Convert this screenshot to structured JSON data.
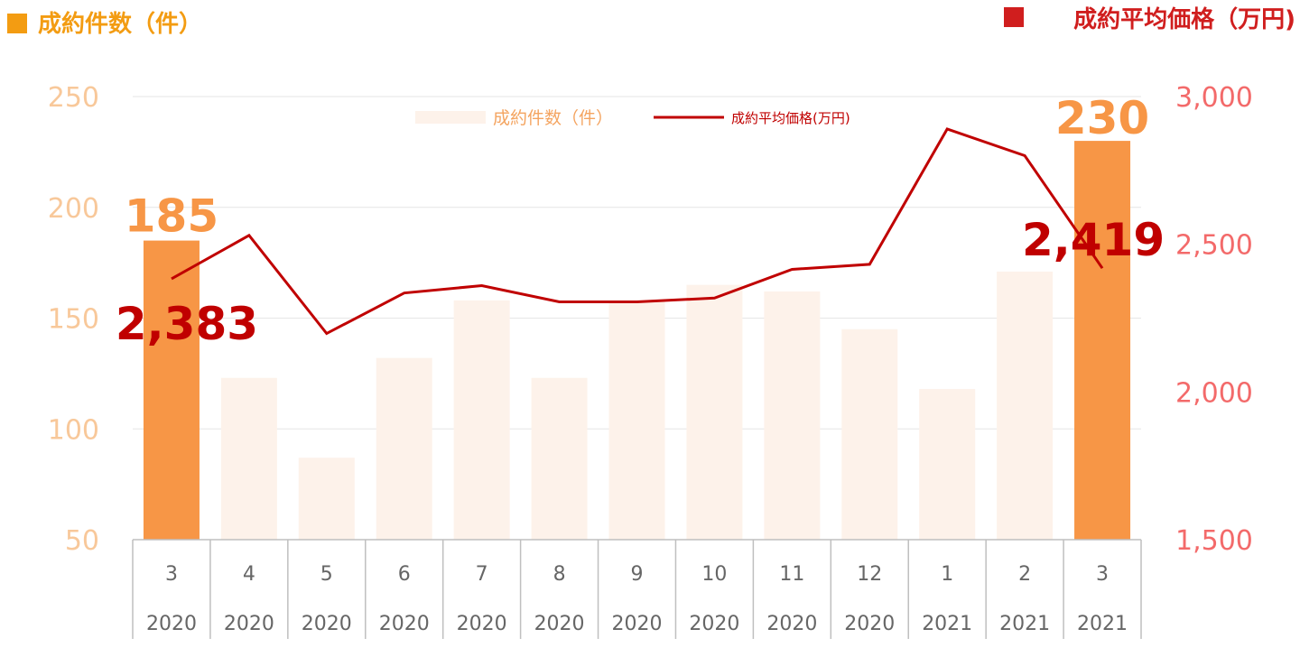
{
  "chart_data": {
    "type": "bar",
    "title_left": "成約件数（件）",
    "title_right": "成約平均価格（万円)",
    "categories": [
      "3",
      "4",
      "5",
      "6",
      "7",
      "8",
      "9",
      "10",
      "11",
      "12",
      "1",
      "2",
      "3"
    ],
    "years": [
      "2020",
      "2020",
      "2020",
      "2020",
      "2020",
      "2020",
      "2020",
      "2020",
      "2020",
      "2020",
      "2021",
      "2021",
      "2021"
    ],
    "series": [
      {
        "name": "成約件数（件）",
        "kind": "bar",
        "axis": "left",
        "values": [
          185,
          123,
          87,
          132,
          158,
          123,
          158,
          165,
          162,
          145,
          118,
          171,
          230
        ]
      },
      {
        "name": "成約平均価格(万円)",
        "kind": "line",
        "axis": "right",
        "values": [
          2383,
          2530,
          2198,
          2335,
          2360,
          2305,
          2305,
          2318,
          2415,
          2432,
          2890,
          2800,
          2419
        ]
      }
    ],
    "y_left": {
      "min": 50,
      "max": 250,
      "ticks": [
        "250",
        "200",
        "150",
        "100",
        "50"
      ]
    },
    "y_right": {
      "min": 1500,
      "max": 3000,
      "ticks": [
        "3,000",
        "2,500",
        "2,000",
        "1,500"
      ]
    },
    "highlighted_indices": [
      0,
      12
    ],
    "bar_labels": [
      "185",
      "230"
    ],
    "line_labels": [
      "2,383",
      "2,419"
    ],
    "legend_position": "top-center",
    "colors": {
      "bar_highlight": "#f79646",
      "bar_normal": "#fdf2ea",
      "line": "#c00000",
      "left_axis_text": "#f8c89a",
      "right_axis_text": "#f36a6a",
      "title_left_color": "#f39c12",
      "title_right_color": "#d01e1e",
      "bar_label_color": "#f79646",
      "line_label_color": "#c00000",
      "legend_bar_text": "#f4a460",
      "legend_line_text": "#c00000"
    }
  }
}
